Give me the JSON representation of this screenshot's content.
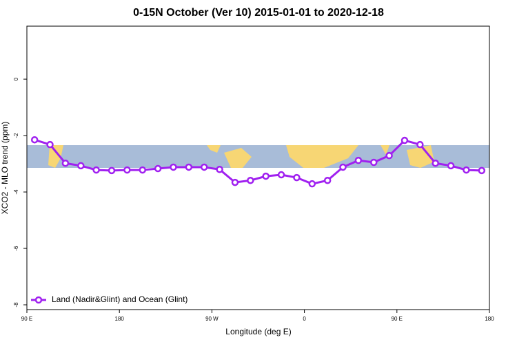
{
  "chart_data": {
    "type": "line",
    "title": "0-15N October (Ver 10)   2015-01-01 to 2020-12-18",
    "x_label": "Longitude (deg E)",
    "y_label": "XCO2 - MLO trend (ppm)",
    "xlim": [
      90,
      540
    ],
    "xticks": [
      {
        "value": 90,
        "label": "90 E"
      },
      180,
      {
        "value": 270,
        "label": "90 W"
      },
      {
        "value": 360,
        "label": "0"
      },
      {
        "value": 450,
        "label": "90 E"
      },
      {
        "value": 540,
        "label": "180"
      }
    ],
    "ylim": [
      -8.17,
      1.88
    ],
    "yticks": [
      0,
      -2,
      -4,
      -6,
      -8
    ],
    "legend": "bottom-left",
    "x": [
      97.5,
      112.5,
      127.5,
      142.5,
      157.5,
      172.5,
      187.5,
      202.5,
      217.5,
      232.5,
      247.5,
      262.5,
      277.5,
      292.5,
      307.5,
      322.5,
      337.5,
      352.5,
      367.5,
      382.5,
      397.5,
      412.5,
      427.5,
      442.5,
      457.5,
      472.5,
      487.5,
      502.5,
      517.5,
      532.5
    ],
    "series": [
      {
        "name": "Land (Nadir&Glint) and Ocean (Glint)",
        "color": "#a020f0",
        "values": [
          -2.15,
          -2.32,
          -2.98,
          -3.07,
          -3.22,
          -3.24,
          -3.22,
          -3.22,
          -3.17,
          -3.12,
          -3.12,
          -3.12,
          -3.2,
          -3.66,
          -3.59,
          -3.44,
          -3.39,
          -3.49,
          -3.71,
          -3.59,
          -3.12,
          -2.88,
          -2.95,
          -2.71,
          -2.17,
          -2.32,
          -2.98,
          -3.07,
          -3.22,
          -3.24
        ]
      }
    ]
  }
}
